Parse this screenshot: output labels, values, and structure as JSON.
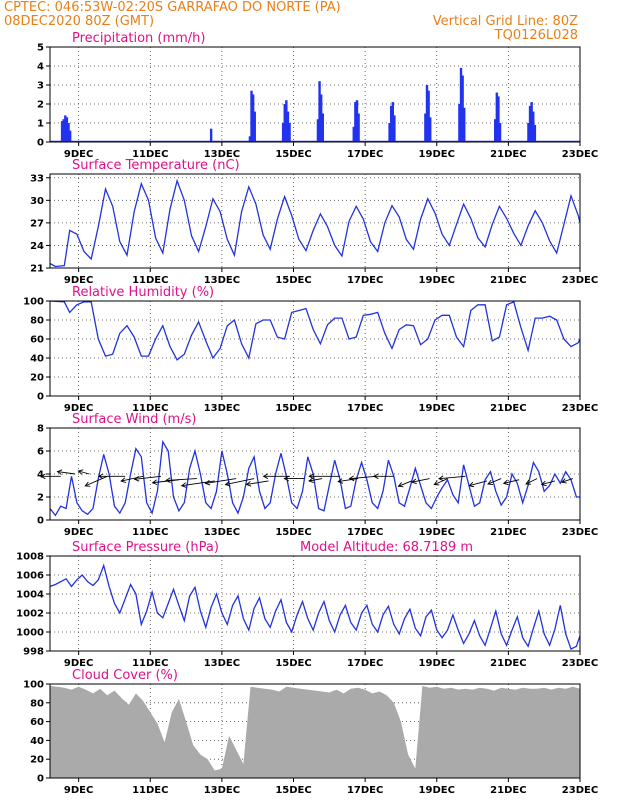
{
  "header": {
    "line1_left": "CPTEC:   046:53W-02:20S  GARRAFAO DO NORTE (PA)",
    "line2_left": "08DEC2020 80Z (GMT)",
    "line2_right": "Vertical Grid Line: 80Z",
    "line3_right": "TQ0126L028"
  },
  "colors": {
    "header": "#e8801a",
    "panel_title": "#e0118a",
    "line": "#2233dd",
    "bar": "#2233ee",
    "cloud": "#aaaaaa"
  },
  "x_axis": {
    "tick_labels": [
      "9DEC",
      "11DEC",
      "13DEC",
      "15DEC",
      "17DEC",
      "19DEC",
      "21DEC",
      "23DEC"
    ],
    "tick_days": [
      9,
      11,
      13,
      15,
      17,
      19,
      21,
      23
    ],
    "range_days": [
      8.2,
      23.0
    ]
  },
  "chart_data": [
    {
      "id": "precip",
      "type": "bar",
      "title": "Precipitation  (mm/h)",
      "ylim": [
        0,
        5
      ],
      "yticks": [
        0,
        1,
        2,
        3,
        4,
        5
      ],
      "events": [
        {
          "day": 8.65,
          "values": [
            1.1,
            1.2,
            1.4,
            1.3,
            1.0,
            0.6
          ]
        },
        {
          "day": 12.7,
          "values": [
            0.7
          ]
        },
        {
          "day": 13.85,
          "values": [
            0.3,
            2.7,
            2.5,
            1.6
          ]
        },
        {
          "day": 14.8,
          "values": [
            1.0,
            2.0,
            2.2,
            1.6,
            1.0
          ]
        },
        {
          "day": 15.75,
          "values": [
            1.2,
            3.2,
            2.5,
            1.5
          ]
        },
        {
          "day": 16.75,
          "values": [
            0.8,
            2.1,
            2.2,
            1.5
          ]
        },
        {
          "day": 17.75,
          "values": [
            1.0,
            1.9,
            2.1,
            1.4
          ]
        },
        {
          "day": 18.75,
          "values": [
            1.5,
            3.0,
            2.7,
            1.3
          ]
        },
        {
          "day": 19.7,
          "values": [
            2.0,
            3.9,
            3.5,
            1.8
          ]
        },
        {
          "day": 20.7,
          "values": [
            1.2,
            2.6,
            2.4,
            1.0
          ]
        },
        {
          "day": 21.65,
          "values": [
            1.0,
            1.9,
            2.1,
            1.6,
            0.9
          ]
        }
      ]
    },
    {
      "id": "temp",
      "type": "line",
      "title": "Surface Temperature  (nC)",
      "ylim": [
        21,
        33.5
      ],
      "yticks": [
        21,
        24,
        27,
        30,
        33
      ],
      "x": [
        8.2,
        8.35,
        8.6,
        8.75,
        8.95,
        9.15,
        9.35,
        9.55,
        9.75,
        9.95,
        10.15,
        10.35,
        10.55,
        10.75,
        10.95,
        11.15,
        11.35,
        11.55,
        11.75,
        11.95,
        12.15,
        12.35,
        12.55,
        12.75,
        12.95,
        13.15,
        13.35,
        13.55,
        13.75,
        13.95,
        14.15,
        14.35,
        14.55,
        14.75,
        14.95,
        15.15,
        15.35,
        15.55,
        15.75,
        15.95,
        16.15,
        16.35,
        16.55,
        16.75,
        16.95,
        17.15,
        17.35,
        17.55,
        17.75,
        17.95,
        18.15,
        18.35,
        18.55,
        18.75,
        18.95,
        19.15,
        19.35,
        19.55,
        19.75,
        19.95,
        20.15,
        20.35,
        20.55,
        20.75,
        20.95,
        21.15,
        21.35,
        21.55,
        21.75,
        21.95,
        22.15,
        22.35,
        22.55,
        22.75,
        22.95,
        23.0
      ],
      "y": [
        21.6,
        21.2,
        21.3,
        26.0,
        25.5,
        23.2,
        22.2,
        26.5,
        31.5,
        29.2,
        24.5,
        22.7,
        28.5,
        32.2,
        30.0,
        25.0,
        23.0,
        28.8,
        32.6,
        30.0,
        25.3,
        23.2,
        26.5,
        30.2,
        28.5,
        24.8,
        22.7,
        28.5,
        31.8,
        29.5,
        25.4,
        23.5,
        27.5,
        30.5,
        28.0,
        24.8,
        23.3,
        26.0,
        28.2,
        26.5,
        24.0,
        22.6,
        27.2,
        29.2,
        27.5,
        24.5,
        23.2,
        27.0,
        29.3,
        27.8,
        24.8,
        23.5,
        27.5,
        30.2,
        28.3,
        25.5,
        24.0,
        26.8,
        29.5,
        27.6,
        25.0,
        23.8,
        26.8,
        29.2,
        27.6,
        25.6,
        24.0,
        26.6,
        28.6,
        27.0,
        24.6,
        23.0,
        26.8,
        30.6,
        28.0,
        27.0
      ]
    },
    {
      "id": "rh",
      "type": "line",
      "title": "Relative Humidity  (%)",
      "ylim": [
        0,
        100
      ],
      "yticks": [
        0,
        20,
        40,
        60,
        80,
        100
      ],
      "x": [
        8.2,
        8.6,
        8.75,
        8.95,
        9.15,
        9.35,
        9.55,
        9.75,
        9.95,
        10.15,
        10.35,
        10.55,
        10.75,
        10.95,
        11.15,
        11.35,
        11.55,
        11.75,
        11.95,
        12.15,
        12.35,
        12.55,
        12.75,
        12.95,
        13.15,
        13.35,
        13.55,
        13.75,
        13.95,
        14.15,
        14.35,
        14.55,
        14.75,
        14.95,
        15.15,
        15.35,
        15.55,
        15.75,
        15.95,
        16.15,
        16.35,
        16.55,
        16.75,
        16.95,
        17.15,
        17.35,
        17.55,
        17.75,
        17.95,
        18.15,
        18.35,
        18.55,
        18.75,
        18.95,
        19.15,
        19.35,
        19.55,
        19.75,
        19.95,
        20.15,
        20.35,
        20.55,
        20.75,
        20.95,
        21.15,
        21.35,
        21.55,
        21.75,
        21.95,
        22.15,
        22.35,
        22.55,
        22.75,
        22.95,
        23.0
      ],
      "y": [
        100,
        99,
        88,
        96,
        99,
        99,
        60,
        42,
        44,
        66,
        74,
        62,
        42,
        42,
        60,
        74,
        52,
        38,
        44,
        64,
        78,
        58,
        40,
        50,
        74,
        80,
        55,
        40,
        76,
        80,
        80,
        62,
        60,
        88,
        90,
        92,
        70,
        55,
        75,
        82,
        82,
        60,
        62,
        85,
        86,
        88,
        66,
        50,
        70,
        75,
        74,
        54,
        60,
        80,
        85,
        85,
        62,
        52,
        90,
        96,
        96,
        58,
        62,
        96,
        99,
        72,
        48,
        82,
        82,
        84,
        80,
        60,
        52,
        56,
        60
      ]
    },
    {
      "id": "wind",
      "type": "line",
      "title": "Surface Wind  (m/s)",
      "ylim": [
        0,
        8
      ],
      "yticks": [
        0,
        2,
        4,
        6,
        8
      ],
      "x": [
        8.2,
        8.35,
        8.5,
        8.65,
        8.8,
        8.95,
        9.1,
        9.25,
        9.4,
        9.55,
        9.7,
        9.85,
        10.0,
        10.15,
        10.3,
        10.45,
        10.6,
        10.75,
        10.9,
        11.05,
        11.2,
        11.35,
        11.5,
        11.65,
        11.8,
        11.95,
        12.1,
        12.25,
        12.4,
        12.55,
        12.7,
        12.85,
        13.0,
        13.15,
        13.3,
        13.45,
        13.6,
        13.75,
        13.9,
        14.05,
        14.2,
        14.35,
        14.5,
        14.65,
        14.8,
        14.95,
        15.1,
        15.25,
        15.4,
        15.55,
        15.7,
        15.85,
        16.0,
        16.15,
        16.3,
        16.45,
        16.6,
        16.75,
        16.9,
        17.05,
        17.2,
        17.35,
        17.5,
        17.65,
        17.8,
        17.95,
        18.1,
        18.25,
        18.4,
        18.55,
        18.7,
        18.85,
        19.0,
        19.15,
        19.3,
        19.45,
        19.6,
        19.75,
        19.9,
        20.05,
        20.2,
        20.35,
        20.5,
        20.65,
        20.8,
        20.95,
        21.1,
        21.25,
        21.4,
        21.55,
        21.7,
        21.85,
        22.0,
        22.15,
        22.3,
        22.45,
        22.6,
        22.75,
        22.9,
        23.0
      ],
      "y": [
        1.0,
        0.4,
        1.2,
        1.0,
        3.8,
        1.5,
        0.8,
        0.5,
        1.0,
        3.6,
        5.7,
        4.0,
        1.2,
        0.6,
        1.5,
        4.0,
        6.2,
        5.5,
        1.5,
        0.6,
        2.5,
        6.8,
        6.0,
        2.0,
        0.8,
        1.5,
        4.5,
        6.0,
        4.0,
        1.5,
        1.0,
        2.5,
        6.0,
        4.0,
        1.5,
        0.6,
        2.0,
        4.5,
        5.5,
        2.5,
        1.0,
        1.5,
        4.0,
        5.8,
        3.8,
        1.5,
        1.0,
        2.5,
        5.5,
        4.0,
        1.0,
        0.8,
        3.0,
        5.2,
        3.5,
        1.0,
        1.2,
        3.5,
        5.0,
        3.5,
        1.5,
        1.0,
        2.5,
        5.2,
        3.8,
        1.5,
        1.2,
        2.8,
        4.5,
        3.0,
        1.5,
        1.0,
        2.0,
        2.8,
        3.5,
        2.2,
        1.5,
        4.8,
        3.0,
        1.2,
        1.5,
        3.5,
        4.2,
        2.5,
        1.3,
        2.0,
        4.0,
        3.2,
        1.5,
        3.0,
        5.0,
        4.2,
        2.5,
        3.0,
        4.0,
        3.2,
        4.2,
        3.5,
        2.0,
        2.0
      ]
    },
    {
      "id": "pressure",
      "type": "line",
      "title": "Surface Pressure  (hPa)",
      "ylim": [
        998,
        1008
      ],
      "yticks": [
        998,
        1000,
        1002,
        1004,
        1006,
        1008
      ],
      "annotation": "Model Altitude: 68.7189  m",
      "x": [
        8.2,
        8.35,
        8.5,
        8.65,
        8.8,
        8.95,
        9.1,
        9.25,
        9.4,
        9.55,
        9.7,
        9.85,
        10.0,
        10.15,
        10.3,
        10.45,
        10.6,
        10.75,
        10.9,
        11.05,
        11.2,
        11.35,
        11.5,
        11.65,
        11.8,
        11.95,
        12.1,
        12.25,
        12.4,
        12.55,
        12.7,
        12.85,
        13.0,
        13.15,
        13.3,
        13.45,
        13.6,
        13.75,
        13.9,
        14.05,
        14.2,
        14.35,
        14.5,
        14.65,
        14.8,
        14.95,
        15.1,
        15.25,
        15.4,
        15.55,
        15.7,
        15.85,
        16.0,
        16.15,
        16.3,
        16.45,
        16.6,
        16.75,
        16.9,
        17.05,
        17.2,
        17.35,
        17.5,
        17.65,
        17.8,
        17.95,
        18.1,
        18.25,
        18.4,
        18.55,
        18.7,
        18.85,
        19.0,
        19.15,
        19.3,
        19.45,
        19.6,
        19.75,
        19.9,
        20.05,
        20.2,
        20.35,
        20.5,
        20.65,
        20.8,
        20.95,
        21.1,
        21.25,
        21.4,
        21.55,
        21.7,
        21.85,
        22.0,
        22.15,
        22.3,
        22.45,
        22.6,
        22.75,
        22.9,
        23.0
      ],
      "y": [
        1004.8,
        1005.0,
        1005.3,
        1005.6,
        1004.8,
        1005.5,
        1006.0,
        1005.3,
        1004.9,
        1005.5,
        1007.0,
        1004.8,
        1003.0,
        1002.0,
        1003.5,
        1005.0,
        1004.0,
        1000.8,
        1002.2,
        1004.2,
        1002.0,
        1001.5,
        1003.0,
        1004.5,
        1002.8,
        1001.2,
        1003.8,
        1004.7,
        1002.2,
        1000.5,
        1002.6,
        1004.0,
        1002.0,
        1000.8,
        1002.8,
        1003.8,
        1001.4,
        1000.2,
        1002.5,
        1003.6,
        1001.4,
        1000.5,
        1002.2,
        1003.4,
        1001.0,
        1000.0,
        1001.8,
        1003.2,
        1001.4,
        1000.2,
        1002.0,
        1003.2,
        1001.2,
        1000.0,
        1001.8,
        1002.8,
        1001.0,
        1000.2,
        1002.0,
        1002.8,
        1000.8,
        1000.0,
        1001.8,
        1002.7,
        1000.8,
        999.8,
        1001.4,
        1002.4,
        1000.4,
        999.6,
        1001.6,
        1002.3,
        1000.2,
        999.4,
        1000.2,
        1001.8,
        1000.2,
        998.8,
        999.8,
        1001.2,
        999.6,
        998.6,
        1000.4,
        1002.2,
        999.8,
        998.6,
        1000.2,
        1001.6,
        999.4,
        998.5,
        1000.4,
        1002.2,
        999.8,
        998.6,
        1000.3,
        1002.8,
        999.8,
        998.2,
        998.5,
        999.6
      ]
    },
    {
      "id": "cloud",
      "type": "area",
      "title": "Cloud Cover  (%)",
      "ylim": [
        0,
        100
      ],
      "yticks": [
        0,
        20,
        40,
        60,
        80,
        100
      ],
      "x": [
        8.2,
        8.4,
        8.6,
        8.8,
        9.0,
        9.2,
        9.4,
        9.6,
        9.8,
        10.0,
        10.2,
        10.4,
        10.6,
        10.8,
        11.0,
        11.2,
        11.4,
        11.6,
        11.8,
        12.0,
        12.2,
        12.4,
        12.6,
        12.8,
        13.0,
        13.2,
        13.4,
        13.6,
        13.8,
        14.0,
        14.2,
        14.4,
        14.6,
        14.8,
        15.0,
        15.2,
        15.4,
        15.6,
        15.8,
        16.0,
        16.2,
        16.4,
        16.6,
        16.8,
        17.0,
        17.2,
        17.4,
        17.6,
        17.8,
        18.0,
        18.2,
        18.4,
        18.6,
        18.8,
        19.0,
        19.2,
        19.4,
        19.6,
        19.8,
        20.0,
        20.2,
        20.4,
        20.6,
        20.8,
        21.0,
        21.2,
        21.4,
        21.6,
        21.8,
        22.0,
        22.2,
        22.4,
        22.6,
        22.8,
        23.0
      ],
      "y": [
        98,
        97,
        96,
        94,
        97,
        94,
        90,
        95,
        88,
        93,
        85,
        78,
        90,
        82,
        70,
        58,
        38,
        70,
        84,
        60,
        35,
        25,
        20,
        8,
        10,
        45,
        30,
        15,
        97,
        96,
        95,
        94,
        92,
        97,
        96,
        95,
        94,
        93,
        92,
        91,
        94,
        90,
        95,
        96,
        94,
        90,
        92,
        88,
        80,
        60,
        25,
        10,
        98,
        96,
        97,
        95,
        96,
        94,
        95,
        94,
        96,
        95,
        93,
        96,
        95,
        94,
        96,
        95,
        95,
        96,
        94,
        96,
        95,
        97,
        95
      ]
    }
  ],
  "wind_arrows": [
    {
      "day": 8.5,
      "y": 3.8,
      "dx": -0.9,
      "dy": 0.0
    },
    {
      "day": 8.9,
      "y": 4.0,
      "dx": -0.8,
      "dy": 0.4
    },
    {
      "day": 9.3,
      "y": 4.0,
      "dx": -0.5,
      "dy": 0.5
    },
    {
      "day": 9.8,
      "y": 3.8,
      "dx": -1.0,
      "dy": -1.6
    },
    {
      "day": 10.3,
      "y": 3.8,
      "dx": -1.2,
      "dy": 0.0
    },
    {
      "day": 10.8,
      "y": 3.8,
      "dx": -1.0,
      "dy": -0.8
    },
    {
      "day": 11.3,
      "y": 3.8,
      "dx": -1.2,
      "dy": -0.5
    },
    {
      "day": 11.8,
      "y": 3.5,
      "dx": -1.2,
      "dy": -0.5
    },
    {
      "day": 12.3,
      "y": 3.6,
      "dx": -1.4,
      "dy": -0.3
    },
    {
      "day": 12.8,
      "y": 3.4,
      "dx": -1.5,
      "dy": -0.8
    },
    {
      "day": 13.4,
      "y": 3.6,
      "dx": -1.4,
      "dy": -0.8
    },
    {
      "day": 13.9,
      "y": 3.6,
      "dx": -1.3,
      "dy": -1.0
    },
    {
      "day": 14.3,
      "y": 3.4,
      "dx": -1.0,
      "dy": -0.6
    },
    {
      "day": 14.9,
      "y": 3.8,
      "dx": -1.2,
      "dy": 0.0
    },
    {
      "day": 15.3,
      "y": 3.6,
      "dx": -0.9,
      "dy": 0.0
    },
    {
      "day": 15.8,
      "y": 3.6,
      "dx": -0.6,
      "dy": -0.4
    },
    {
      "day": 16.3,
      "y": 3.8,
      "dx": -1.4,
      "dy": 0.0
    },
    {
      "day": 16.8,
      "y": 3.6,
      "dx": -0.9,
      "dy": -0.5
    },
    {
      "day": 17.3,
      "y": 3.8,
      "dx": -1.2,
      "dy": -0.4
    },
    {
      "day": 17.8,
      "y": 3.8,
      "dx": -0.9,
      "dy": 0.0
    },
    {
      "day": 18.3,
      "y": 3.4,
      "dx": -0.6,
      "dy": -0.9
    },
    {
      "day": 18.8,
      "y": 3.6,
      "dx": -0.8,
      "dy": -0.6
    },
    {
      "day": 19.3,
      "y": 3.6,
      "dx": -0.6,
      "dy": -1.0
    },
    {
      "day": 19.8,
      "y": 3.8,
      "dx": -1.2,
      "dy": -0.4
    },
    {
      "day": 20.4,
      "y": 3.4,
      "dx": -0.8,
      "dy": -0.8
    },
    {
      "day": 20.8,
      "y": 3.6,
      "dx": -0.6,
      "dy": -0.9
    },
    {
      "day": 21.3,
      "y": 3.5,
      "dx": -0.7,
      "dy": -0.6
    },
    {
      "day": 21.8,
      "y": 3.6,
      "dx": -0.5,
      "dy": -0.9
    },
    {
      "day": 22.3,
      "y": 3.4,
      "dx": -0.6,
      "dy": -0.6
    },
    {
      "day": 22.8,
      "y": 3.6,
      "dx": -0.5,
      "dy": -0.6
    }
  ]
}
